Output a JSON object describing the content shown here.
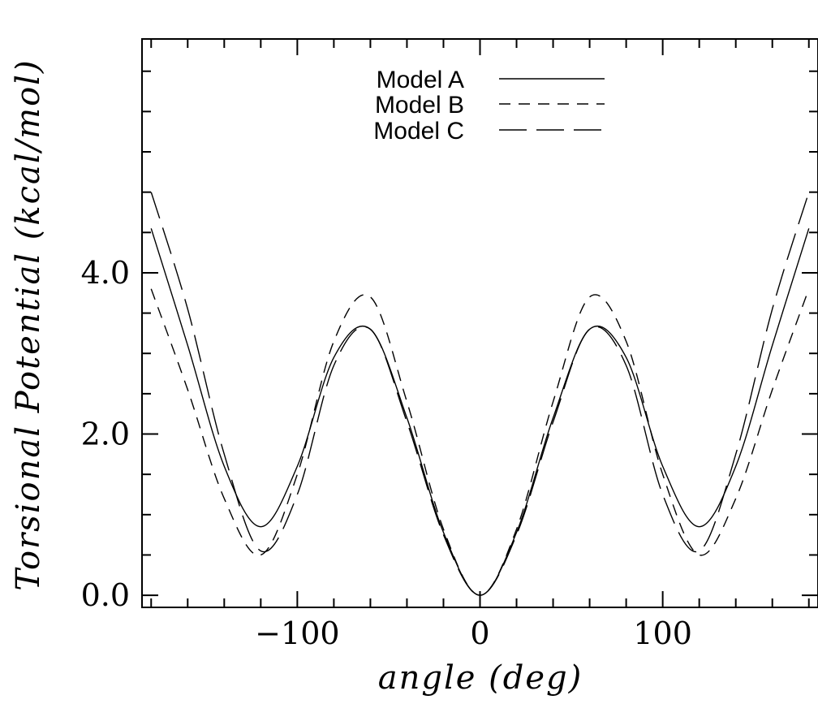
{
  "chart_data": {
    "type": "line",
    "title": "",
    "xlabel": "angle (deg)",
    "ylabel": "Torsional Potential (kcal/mol)",
    "xlim": [
      -185,
      185
    ],
    "ylim": [
      -0.15,
      6.9
    ],
    "x_ticks_major": [
      -100,
      0,
      100
    ],
    "x_tick_labels": [
      "−100",
      "0",
      "100"
    ],
    "y_ticks_major": [
      0,
      2,
      4
    ],
    "y_tick_labels": [
      "0.0",
      "2.0",
      "4.0"
    ],
    "grid": false,
    "legend_position": "top-center",
    "series": [
      {
        "name": "Model A",
        "style": "solid",
        "x": [
          -180,
          -160,
          -140,
          -120,
          -100,
          -80,
          -60,
          -40,
          -20,
          0,
          20,
          40,
          60,
          80,
          100,
          120,
          140,
          160,
          180
        ],
        "y": [
          4.55,
          3.1,
          1.6,
          0.85,
          1.6,
          2.95,
          3.3,
          2.2,
          0.78,
          0.0,
          0.78,
          2.2,
          3.3,
          2.95,
          1.6,
          0.85,
          1.6,
          3.1,
          4.55
        ]
      },
      {
        "name": "Model B",
        "style": "dashed",
        "x": [
          -180,
          -160,
          -140,
          -120,
          -100,
          -80,
          -60,
          -40,
          -20,
          0,
          20,
          40,
          60,
          80,
          100,
          120,
          140,
          160,
          180
        ],
        "y": [
          3.8,
          2.55,
          1.2,
          0.5,
          1.5,
          3.15,
          3.7,
          2.4,
          0.82,
          0.0,
          0.82,
          2.4,
          3.7,
          3.15,
          1.5,
          0.5,
          1.2,
          2.55,
          3.8
        ]
      },
      {
        "name": "Model C",
        "style": "long-dashed",
        "x": [
          -180,
          -160,
          -140,
          -120,
          -100,
          -80,
          -60,
          -40,
          -20,
          0,
          20,
          40,
          60,
          80,
          100,
          120,
          140,
          160,
          180
        ],
        "y": [
          5.0,
          3.55,
          1.75,
          0.55,
          1.25,
          2.85,
          3.3,
          2.15,
          0.75,
          0.0,
          0.75,
          2.15,
          3.3,
          2.85,
          1.25,
          0.55,
          1.75,
          3.55,
          5.0
        ]
      }
    ]
  }
}
